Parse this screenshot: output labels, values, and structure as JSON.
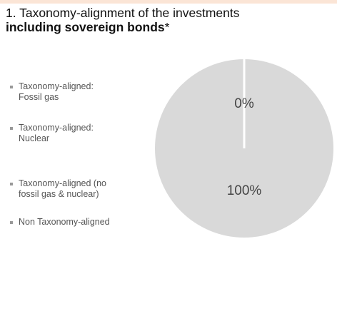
{
  "chart_data": {
    "type": "pie",
    "title": "1. Taxonomy-alignment of the investments",
    "subtitle": "including sovereign bonds",
    "subtitle_note": "*",
    "categories": [
      "Taxonomy-aligned:\nFossil gas",
      "Taxonomy-aligned:\nNuclear",
      "Taxonomy-aligned (no\nfossil gas & nuclear)",
      "Non Taxonomy-aligned"
    ],
    "values": [
      0,
      0,
      0,
      100
    ],
    "value_labels": [
      null,
      null,
      "0%",
      "100%"
    ],
    "colors": [
      "#d9d9d9",
      "#d9d9d9",
      "#d9d9d9",
      "#d9d9d9"
    ],
    "legend": "left"
  }
}
